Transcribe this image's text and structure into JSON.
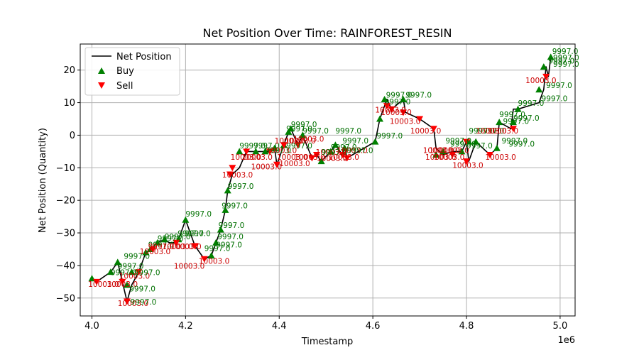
{
  "chart_data": {
    "type": "line",
    "title": "Net Position Over Time: RAINFOREST_RESIN",
    "xlabel": "Timestamp",
    "ylabel": "Net Position (Quantity)",
    "x_offset_label": "1e6",
    "xlim": [
      3.975,
      5.032
    ],
    "ylim": [
      -55.5,
      28
    ],
    "x_ticks": [
      4.0,
      4.2,
      4.4,
      4.6,
      4.8,
      5.0
    ],
    "x_tick_labels": [
      "4.0",
      "4.2",
      "4.4",
      "4.6",
      "4.8",
      "5.0"
    ],
    "y_ticks": [
      -50,
      -40,
      -30,
      -20,
      -10,
      0,
      10,
      20
    ],
    "y_tick_labels": [
      "−50",
      "−40",
      "−30",
      "−20",
      "−10",
      "0",
      "10",
      "20"
    ],
    "grid": true,
    "legend_position": "top-left",
    "legend": [
      {
        "label": "Net Position",
        "kind": "line",
        "color": "#000000"
      },
      {
        "label": "Buy",
        "kind": "triangle-up",
        "color": "#008000"
      },
      {
        "label": "Sell",
        "kind": "triangle-down",
        "color": "#ff0000"
      }
    ],
    "colors": {
      "line": "#000000",
      "buy": "#008000",
      "sell": "#ff0000"
    },
    "net_position": {
      "name": "Net Position",
      "x": [
        4.0,
        4.01,
        4.04,
        4.055,
        4.065,
        4.075,
        4.085,
        4.1,
        4.115,
        4.125,
        4.14,
        4.155,
        4.165,
        4.18,
        4.185,
        4.2,
        4.22,
        4.24,
        4.255,
        4.265,
        4.275,
        4.285,
        4.29,
        4.3,
        4.315,
        4.33,
        4.35,
        4.37,
        4.38,
        4.39,
        4.395,
        4.41,
        4.42,
        4.425,
        4.44,
        4.45,
        4.47,
        4.48,
        4.49,
        4.51,
        4.52,
        4.535,
        4.54,
        4.545,
        4.605,
        4.615,
        4.625,
        4.63,
        4.64,
        4.665,
        4.67,
        4.7,
        4.73,
        4.735,
        4.75,
        4.77,
        4.79,
        4.8,
        4.805,
        4.82,
        4.85,
        4.865,
        4.87,
        4.895,
        4.9,
        4.91,
        4.955,
        4.965,
        4.97,
        4.975,
        4.98
      ],
      "y": [
        -44,
        -45,
        -42,
        -39,
        -45,
        -51,
        -46,
        -42,
        -36,
        -35,
        -33,
        -32,
        -33,
        -33,
        -32,
        -26,
        -34,
        -38,
        -37,
        -33,
        -29,
        -23,
        -17,
        -12,
        -10,
        -5,
        -5,
        -5,
        -5,
        -4,
        -9,
        -3,
        1,
        2,
        -3,
        0,
        -7,
        -6,
        -8,
        -5,
        -3,
        -6,
        -4,
        -7,
        -2,
        5,
        9,
        11,
        8,
        11,
        7,
        5,
        2,
        -4,
        -6,
        -5,
        -5,
        -2,
        -8,
        -2,
        -6,
        -4,
        4,
        2,
        8,
        8,
        10,
        14,
        21,
        18,
        24
      ]
    },
    "buy_points": {
      "name": "Buy",
      "x": [
        4.0,
        4.04,
        4.055,
        4.075,
        4.085,
        4.115,
        4.125,
        4.14,
        4.155,
        4.185,
        4.2,
        4.255,
        4.265,
        4.275,
        4.285,
        4.29,
        4.315,
        4.35,
        4.37,
        4.39,
        4.41,
        4.42,
        4.425,
        4.45,
        4.49,
        4.51,
        4.52,
        4.54,
        4.605,
        4.615,
        4.625,
        4.665,
        4.735,
        4.75,
        4.79,
        4.805,
        4.82,
        4.865,
        4.87,
        4.9,
        4.91,
        4.955,
        4.965,
        4.98
      ],
      "y": [
        -44,
        -42,
        -39,
        -46,
        -42,
        -36,
        -35,
        -33,
        -32,
        -32,
        -26,
        -37,
        -33,
        -29,
        -23,
        -17,
        -5,
        -5,
        -5,
        -4,
        -3,
        1,
        2,
        0,
        -8,
        -5,
        -3,
        -4,
        -2,
        5,
        11,
        11,
        -6,
        -5,
        -5,
        -2,
        -2,
        -4,
        4,
        4,
        8,
        14,
        21,
        24
      ]
    },
    "sell_points": {
      "name": "Sell",
      "x": [
        4.01,
        4.065,
        4.075,
        4.1,
        4.13,
        4.18,
        4.22,
        4.24,
        4.295,
        4.3,
        4.33,
        4.38,
        4.395,
        4.41,
        4.44,
        4.47,
        4.48,
        4.535,
        4.545,
        4.63,
        4.64,
        4.665,
        4.7,
        4.73,
        4.77,
        4.8,
        4.8,
        4.85,
        4.9,
        4.97
      ],
      "y": [
        -45,
        -45,
        -51,
        -42,
        -35,
        -33,
        -34,
        -38,
        -12,
        -10,
        -5,
        -5,
        -9,
        -3,
        -3,
        -7,
        -6,
        -6,
        -7,
        9,
        8,
        7,
        5,
        2,
        -6,
        -2,
        -8,
        -6,
        2,
        18
      ]
    },
    "annotations": [
      {
        "text": "10003.0",
        "x": 3.992,
        "y": -46.6,
        "color": "red"
      },
      {
        "text": "9997.0",
        "x": 4.04,
        "y": -43,
        "color": "green"
      },
      {
        "text": "10003.0",
        "x": 4.032,
        "y": -46.6,
        "color": "red"
      },
      {
        "text": "9997.0",
        "x": 4.068,
        "y": -38,
        "color": "green"
      },
      {
        "text": "9997.0",
        "x": 4.055,
        "y": -41,
        "color": "green"
      },
      {
        "text": "10003.0",
        "x": 4.058,
        "y": -44,
        "color": "red"
      },
      {
        "text": "10003.0",
        "x": 4.055,
        "y": -52.5,
        "color": "red"
      },
      {
        "text": "9997.0",
        "x": 4.08,
        "y": -48,
        "color": "green"
      },
      {
        "text": "9997.0",
        "x": 4.082,
        "y": -52,
        "color": "green"
      },
      {
        "text": "9997.0",
        "x": 4.09,
        "y": -43,
        "color": "green"
      },
      {
        "text": "10003.0",
        "x": 4.102,
        "y": -36.5,
        "color": "red"
      },
      {
        "text": "9997.0",
        "x": 4.12,
        "y": -34.5,
        "color": "green"
      },
      {
        "text": "9997.0",
        "x": 4.14,
        "y": -32.5,
        "color": "green"
      },
      {
        "text": "9997.0",
        "x": 4.155,
        "y": -32,
        "color": "green"
      },
      {
        "text": "9997.0",
        "x": 4.183,
        "y": -31,
        "color": "green"
      },
      {
        "text": "9997.0",
        "x": 4.198,
        "y": -31,
        "color": "green"
      },
      {
        "text": "9997.0",
        "x": 4.12,
        "y": -35,
        "color": "red"
      },
      {
        "text": "10003.0",
        "x": 4.15,
        "y": -35,
        "color": "red"
      },
      {
        "text": "10003.0",
        "x": 4.168,
        "y": -35,
        "color": "red"
      },
      {
        "text": "10003.0",
        "x": 4.175,
        "y": -41,
        "color": "red"
      },
      {
        "text": "10003.0",
        "x": 4.228,
        "y": -39.5,
        "color": "red"
      },
      {
        "text": "9997.0",
        "x": 4.2,
        "y": -25,
        "color": "green"
      },
      {
        "text": "9997.0",
        "x": 4.24,
        "y": -35.5,
        "color": "green"
      },
      {
        "text": "9997.0",
        "x": 4.268,
        "y": -32,
        "color": "green"
      },
      {
        "text": "9997.0",
        "x": 4.265,
        "y": -34.5,
        "color": "green"
      },
      {
        "text": "9997.0",
        "x": 4.27,
        "y": -28.5,
        "color": "green"
      },
      {
        "text": "9997.0",
        "x": 4.277,
        "y": -22.5,
        "color": "green"
      },
      {
        "text": "9997.0",
        "x": 4.29,
        "y": -16.5,
        "color": "green"
      },
      {
        "text": "10003.0",
        "x": 4.278,
        "y": -13,
        "color": "red"
      },
      {
        "text": "10003.0",
        "x": 4.296,
        "y": -7.5,
        "color": "red"
      },
      {
        "text": "9997.0",
        "x": 4.315,
        "y": -4,
        "color": "green"
      },
      {
        "text": "10003.0",
        "x": 4.32,
        "y": -7.5,
        "color": "red"
      },
      {
        "text": "9997.0",
        "x": 4.345,
        "y": -4,
        "color": "green"
      },
      {
        "text": "10003.0",
        "x": 4.372,
        "y": -5.5,
        "color": "red"
      },
      {
        "text": "9997.0",
        "x": 4.37,
        "y": -5.5,
        "color": "green"
      },
      {
        "text": "10003.0",
        "x": 4.34,
        "y": -10.5,
        "color": "red"
      },
      {
        "text": "10003.0",
        "x": 4.39,
        "y": -2.5,
        "color": "red"
      },
      {
        "text": "10003.0",
        "x": 4.395,
        "y": -7.5,
        "color": "red"
      },
      {
        "text": "9997.0",
        "x": 4.415,
        "y": -4,
        "color": "green"
      },
      {
        "text": "10003.0",
        "x": 4.4,
        "y": -9.5,
        "color": "red"
      },
      {
        "text": "9997.0",
        "x": 4.425,
        "y": 2.5,
        "color": "green"
      },
      {
        "text": "9997.0",
        "x": 4.415,
        "y": 1.2,
        "color": "green"
      },
      {
        "text": "9997.0",
        "x": 4.45,
        "y": 0.5,
        "color": "green"
      },
      {
        "text": "10003.0",
        "x": 4.412,
        "y": -2.5,
        "color": "red"
      },
      {
        "text": "10003.0",
        "x": 4.432,
        "y": -7.5,
        "color": "red"
      },
      {
        "text": "10003.0",
        "x": 4.43,
        "y": -2,
        "color": "red"
      },
      {
        "text": "10003.0",
        "x": 4.48,
        "y": -8,
        "color": "red"
      },
      {
        "text": "10003.0",
        "x": 4.478,
        "y": -6,
        "color": "red"
      },
      {
        "text": "9997.0",
        "x": 4.49,
        "y": -6,
        "color": "green"
      },
      {
        "text": "9997.0",
        "x": 4.51,
        "y": -4.5,
        "color": "green"
      },
      {
        "text": "10003.0",
        "x": 4.505,
        "y": -7.5,
        "color": "red"
      },
      {
        "text": "9997.0",
        "x": 4.52,
        "y": 0.5,
        "color": "green"
      },
      {
        "text": "10003.0",
        "x": 4.523,
        "y": -5.5,
        "color": "red"
      },
      {
        "text": "9997.0",
        "x": 4.535,
        "y": -2.5,
        "color": "green"
      },
      {
        "text": "9997.0",
        "x": 4.545,
        "y": -5.5,
        "color": "green"
      },
      {
        "text": "9997.0",
        "x": 4.608,
        "y": -1,
        "color": "green"
      },
      {
        "text": "9997.0",
        "x": 4.628,
        "y": 11.5,
        "color": "green"
      },
      {
        "text": "9997.0",
        "x": 4.67,
        "y": 11.5,
        "color": "green"
      },
      {
        "text": "9997.0",
        "x": 4.625,
        "y": 9.5,
        "color": "green"
      },
      {
        "text": "10003.0",
        "x": 4.605,
        "y": 7,
        "color": "red"
      },
      {
        "text": "10003.0",
        "x": 4.617,
        "y": 6.2,
        "color": "red"
      },
      {
        "text": "10003.0",
        "x": 4.636,
        "y": 3.5,
        "color": "red"
      },
      {
        "text": "10003.0",
        "x": 4.68,
        "y": 0.5,
        "color": "red"
      },
      {
        "text": "10003.0",
        "x": 4.707,
        "y": -5.5,
        "color": "red"
      },
      {
        "text": "10003.0",
        "x": 4.72,
        "y": -5.5,
        "color": "red"
      },
      {
        "text": "10003.0",
        "x": 4.712,
        "y": -7.5,
        "color": "red"
      },
      {
        "text": "10003.0",
        "x": 4.73,
        "y": -7.5,
        "color": "red"
      },
      {
        "text": "10003.0",
        "x": 4.74,
        "y": -5.5,
        "color": "red"
      },
      {
        "text": "9997.0",
        "x": 4.755,
        "y": -2.5,
        "color": "green"
      },
      {
        "text": "9997.0",
        "x": 4.765,
        "y": -3.5,
        "color": "green"
      },
      {
        "text": "10003.0",
        "x": 4.77,
        "y": -10,
        "color": "red"
      },
      {
        "text": "9997.0",
        "x": 4.8,
        "y": -4,
        "color": "green"
      },
      {
        "text": "9997.0",
        "x": 4.805,
        "y": 0.5,
        "color": "green"
      },
      {
        "text": "9997.0",
        "x": 4.825,
        "y": 0.5,
        "color": "green"
      },
      {
        "text": "10003.0",
        "x": 4.82,
        "y": 0.5,
        "color": "red"
      },
      {
        "text": "10003.0",
        "x": 4.845,
        "y": 0.5,
        "color": "red"
      },
      {
        "text": "10003.0",
        "x": 4.84,
        "y": -7.5,
        "color": "red"
      },
      {
        "text": "9997.0",
        "x": 4.875,
        "y": -2.5,
        "color": "green"
      },
      {
        "text": "9997.0",
        "x": 4.89,
        "y": -3.5,
        "color": "green"
      },
      {
        "text": "9997.0",
        "x": 4.87,
        "y": 5.5,
        "color": "green"
      },
      {
        "text": "9997.0",
        "x": 4.878,
        "y": 3.5,
        "color": "green"
      },
      {
        "text": "9997.0",
        "x": 4.9,
        "y": 4.5,
        "color": "green"
      },
      {
        "text": "9997.0",
        "x": 4.91,
        "y": 9,
        "color": "green"
      },
      {
        "text": "9997.0",
        "x": 4.96,
        "y": 10.5,
        "color": "green"
      },
      {
        "text": "9997.0",
        "x": 4.97,
        "y": 14.5,
        "color": "green"
      },
      {
        "text": "10003.0",
        "x": 4.926,
        "y": 16,
        "color": "red"
      },
      {
        "text": "9997.0",
        "x": 4.975,
        "y": 22,
        "color": "green"
      },
      {
        "text": "9997.0",
        "x": 4.983,
        "y": 25,
        "color": "green"
      },
      {
        "text": "9997.0",
        "x": 4.985,
        "y": 23,
        "color": "green"
      },
      {
        "text": "9997.0",
        "x": 4.985,
        "y": 21,
        "color": "green"
      }
    ]
  }
}
